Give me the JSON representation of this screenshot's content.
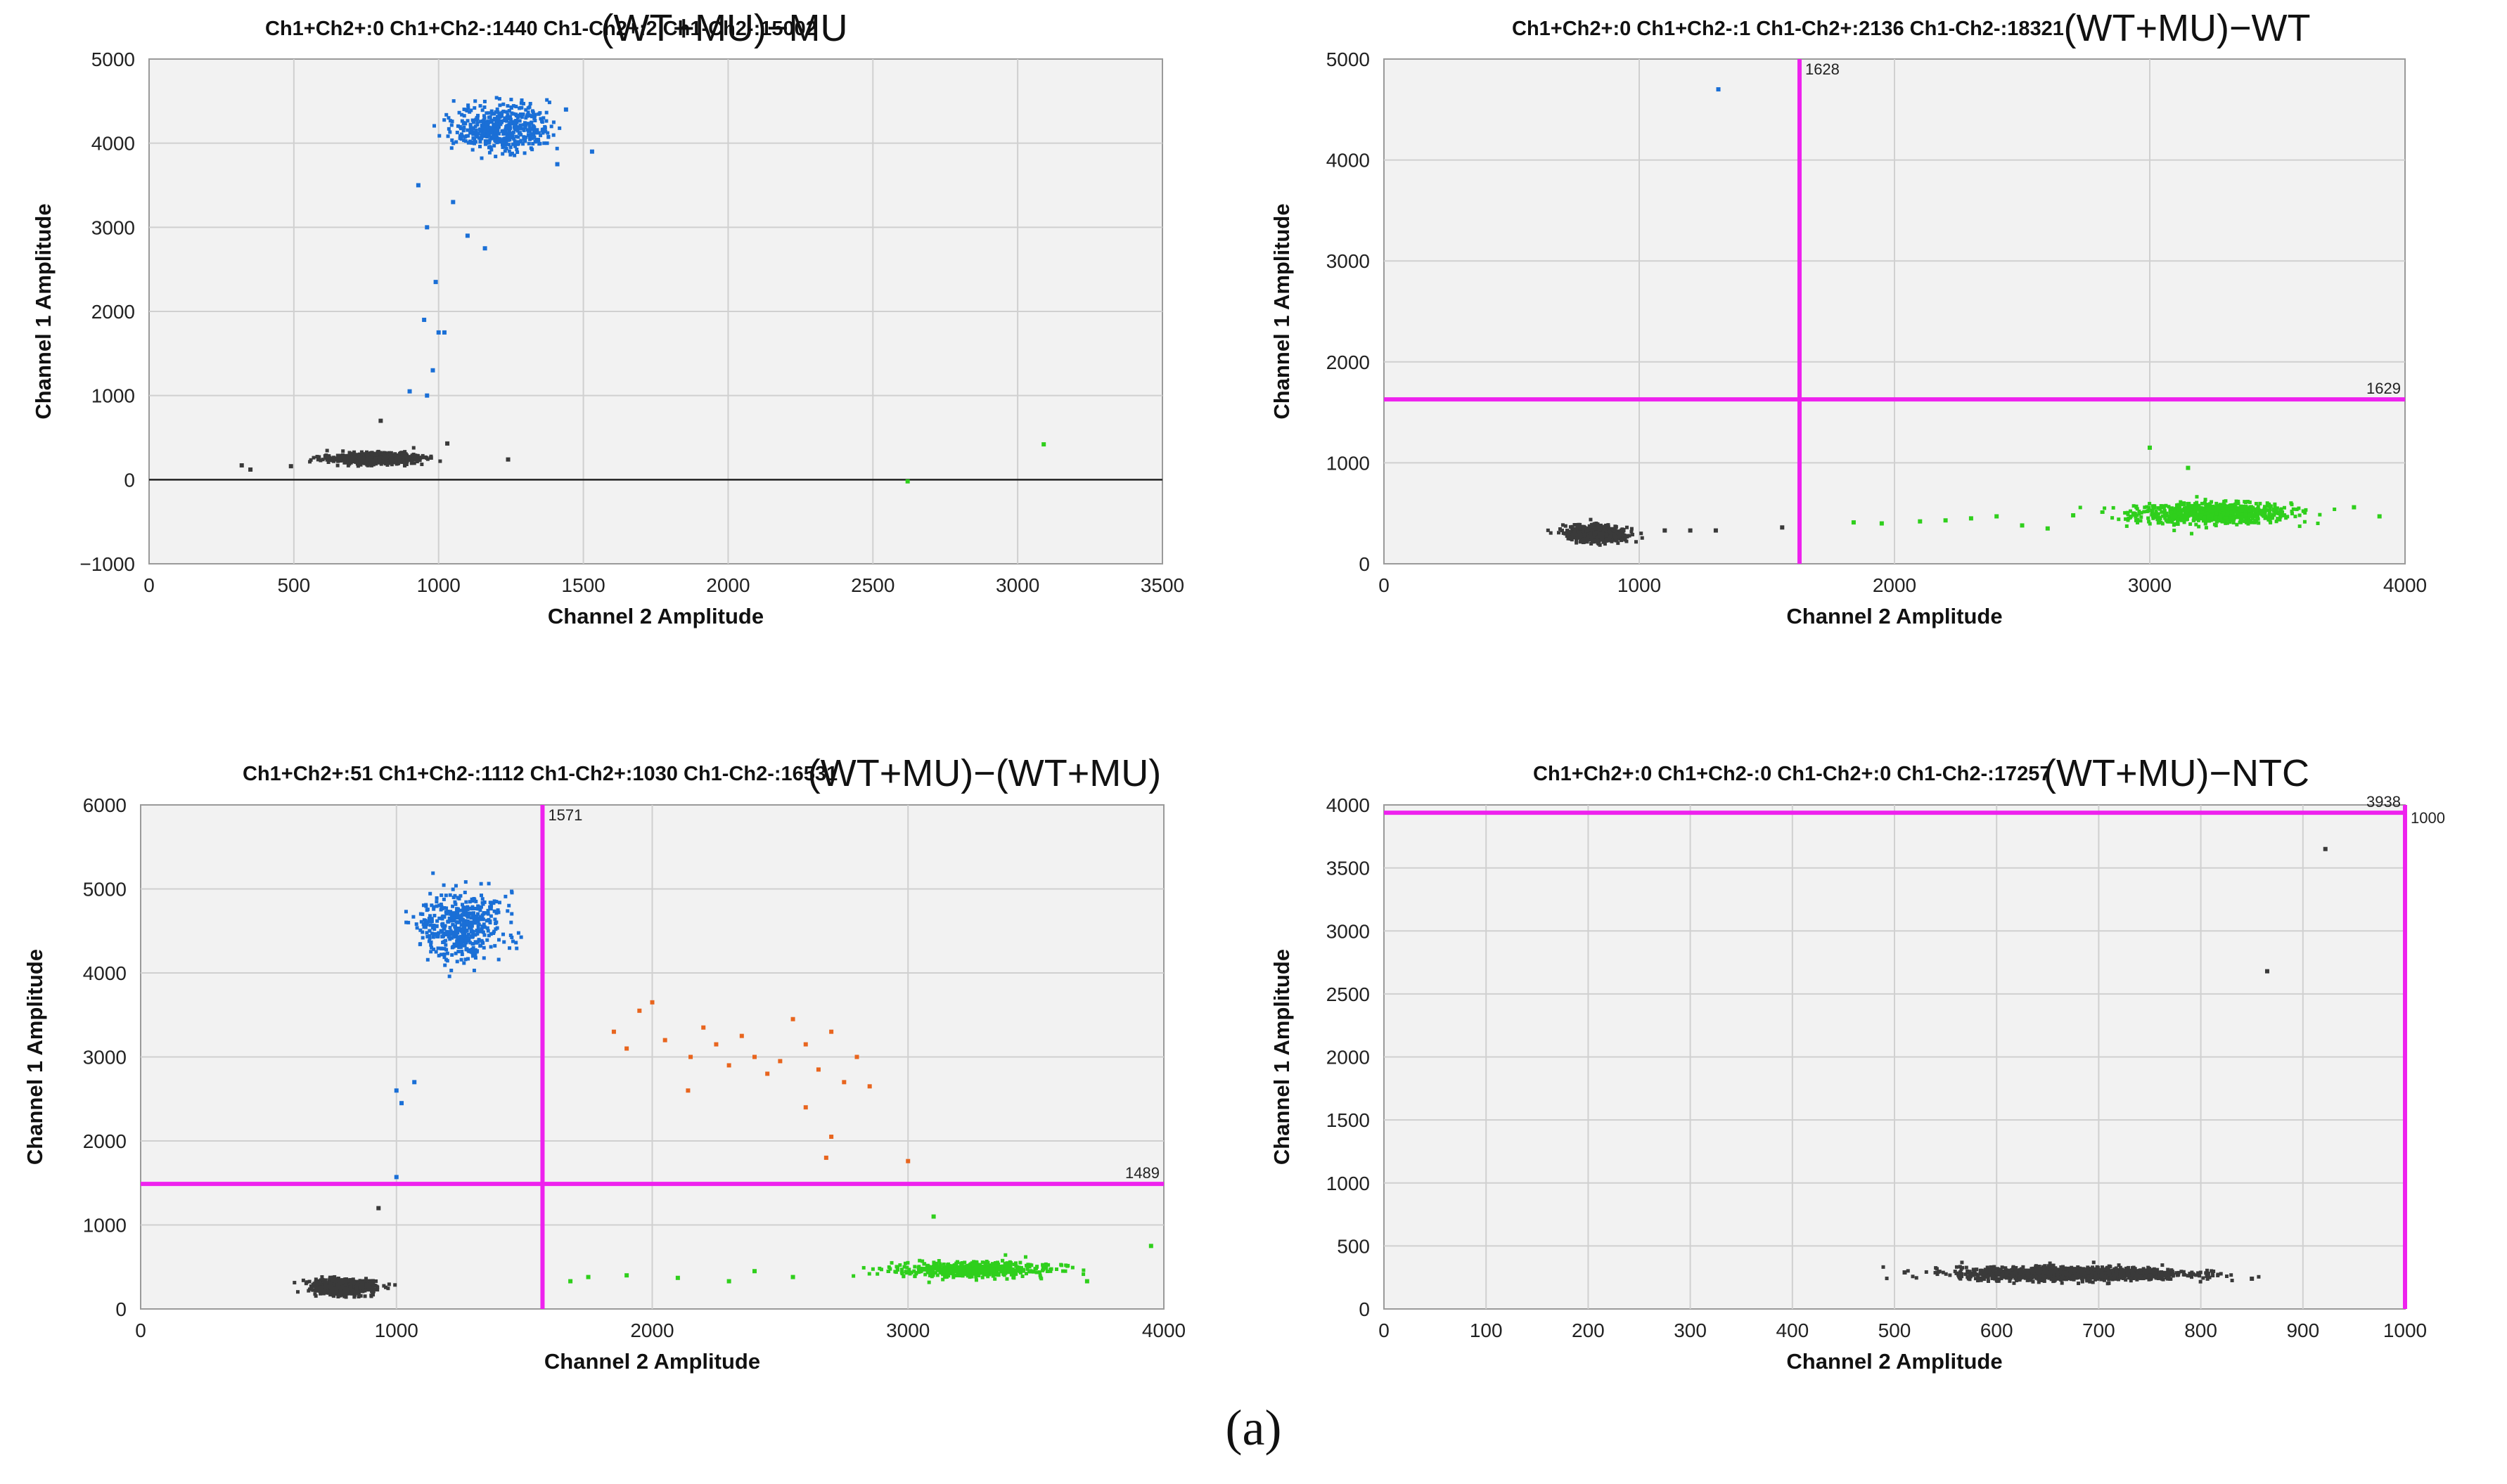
{
  "figure_caption": "(a)",
  "colors": {
    "ch1_positive": "#1a6fd6",
    "ch2_positive": "#2fcf1c",
    "double_positive": "#e8651e",
    "double_negative": "#3a3a3a",
    "threshold": "#ee22ee",
    "plot_bg": "#f2f2f2",
    "grid": "#d0d0d0"
  },
  "chart_data": [
    {
      "type": "scatter",
      "id": "p1",
      "counts_label": "Ch1+Ch2+:0  Ch1+Ch2-:1440  Ch1-Ch2+:2  Ch1-Ch2-:15002",
      "title": "(WT+MU)−MU",
      "xlabel": "Channel 2 Amplitude",
      "ylabel": "Channel 1 Amplitude",
      "xlim": [
        0,
        3500
      ],
      "ylim": [
        -1000,
        5000
      ],
      "xticks": [
        0,
        500,
        1000,
        1500,
        2000,
        2500,
        3000,
        3500
      ],
      "yticks": [
        -1000,
        0,
        1000,
        2000,
        3000,
        4000,
        5000
      ],
      "zero_line": true,
      "threshold_x": null,
      "threshold_y": null,
      "clusters": [
        {
          "name": "Ch1-Ch2-",
          "color": "double_negative",
          "n": 900,
          "cx": 780,
          "cy": 250,
          "sx": 70,
          "sy": 30
        },
        {
          "name": "Ch1+Ch2-",
          "color": "ch1_positive",
          "n": 500,
          "cx": 1220,
          "cy": 4180,
          "sx": 80,
          "sy": 140
        }
      ],
      "extra_points": [
        {
          "x": 930,
          "y": 3500,
          "c": "ch1_positive"
        },
        {
          "x": 960,
          "y": 3000,
          "c": "ch1_positive"
        },
        {
          "x": 990,
          "y": 2350,
          "c": "ch1_positive"
        },
        {
          "x": 950,
          "y": 1900,
          "c": "ch1_positive"
        },
        {
          "x": 1000,
          "y": 1750,
          "c": "ch1_positive"
        },
        {
          "x": 1020,
          "y": 1750,
          "c": "ch1_positive"
        },
        {
          "x": 980,
          "y": 1300,
          "c": "ch1_positive"
        },
        {
          "x": 900,
          "y": 1050,
          "c": "ch1_positive"
        },
        {
          "x": 960,
          "y": 1000,
          "c": "ch1_positive"
        },
        {
          "x": 1050,
          "y": 3300,
          "c": "ch1_positive"
        },
        {
          "x": 1100,
          "y": 2900,
          "c": "ch1_positive"
        },
        {
          "x": 1160,
          "y": 2750,
          "c": "ch1_positive"
        },
        {
          "x": 1530,
          "y": 3900,
          "c": "ch1_positive"
        },
        {
          "x": 1410,
          "y": 3750,
          "c": "ch1_positive"
        },
        {
          "x": 1440,
          "y": 4400,
          "c": "ch1_positive"
        },
        {
          "x": 320,
          "y": 170,
          "c": "double_negative"
        },
        {
          "x": 350,
          "y": 120,
          "c": "double_negative"
        },
        {
          "x": 490,
          "y": 160,
          "c": "double_negative"
        },
        {
          "x": 1030,
          "y": 430,
          "c": "double_negative"
        },
        {
          "x": 1240,
          "y": 240,
          "c": "double_negative"
        },
        {
          "x": 800,
          "y": 700,
          "c": "double_negative"
        },
        {
          "x": 2620,
          "y": -20,
          "c": "ch2_positive"
        },
        {
          "x": 3090,
          "y": 420,
          "c": "ch2_positive"
        }
      ]
    },
    {
      "type": "scatter",
      "id": "p2",
      "counts_label": "Ch1+Ch2+:0  Ch1+Ch2-:1  Ch1-Ch2+:2136  Ch1-Ch2-:18321",
      "title": "(WT+MU)−WT",
      "xlabel": "Channel 2 Amplitude",
      "ylabel": "Channel 1 Amplitude",
      "xlim": [
        0,
        4000
      ],
      "ylim": [
        0,
        5000
      ],
      "xticks": [
        0,
        1000,
        2000,
        3000,
        4000
      ],
      "yticks": [
        0,
        1000,
        2000,
        3000,
        4000,
        5000
      ],
      "zero_line": false,
      "threshold_x": 1628,
      "threshold_y": 1629,
      "threshold_x_label": "1628",
      "threshold_y_label": "1629",
      "clusters": [
        {
          "name": "Ch1-Ch2-",
          "color": "double_negative",
          "n": 700,
          "cx": 830,
          "cy": 300,
          "sx": 55,
          "sy": 40
        },
        {
          "name": "Ch1-Ch2+",
          "color": "ch2_positive",
          "n": 900,
          "cx": 3250,
          "cy": 500,
          "sx": 150,
          "sy": 50
        }
      ],
      "extra_points": [
        {
          "x": 1310,
          "y": 4700,
          "c": "ch1_positive"
        },
        {
          "x": 1100,
          "y": 330,
          "c": "double_negative"
        },
        {
          "x": 1200,
          "y": 330,
          "c": "double_negative"
        },
        {
          "x": 1300,
          "y": 330,
          "c": "double_negative"
        },
        {
          "x": 1560,
          "y": 360,
          "c": "double_negative"
        },
        {
          "x": 1950,
          "y": 400,
          "c": "ch2_positive"
        },
        {
          "x": 2100,
          "y": 420,
          "c": "ch2_positive"
        },
        {
          "x": 2200,
          "y": 430,
          "c": "ch2_positive"
        },
        {
          "x": 2300,
          "y": 450,
          "c": "ch2_positive"
        },
        {
          "x": 2400,
          "y": 470,
          "c": "ch2_positive"
        },
        {
          "x": 2500,
          "y": 380,
          "c": "ch2_positive"
        },
        {
          "x": 2600,
          "y": 350,
          "c": "ch2_positive"
        },
        {
          "x": 2700,
          "y": 480,
          "c": "ch2_positive"
        },
        {
          "x": 1840,
          "y": 410,
          "c": "ch2_positive"
        },
        {
          "x": 3000,
          "y": 1150,
          "c": "ch2_positive"
        },
        {
          "x": 3150,
          "y": 950,
          "c": "ch2_positive"
        },
        {
          "x": 3900,
          "y": 470,
          "c": "ch2_positive"
        },
        {
          "x": 3800,
          "y": 560,
          "c": "ch2_positive"
        }
      ]
    },
    {
      "type": "scatter",
      "id": "p3",
      "counts_label": "Ch1+Ch2+:51  Ch1+Ch2-:1112  Ch1-Ch2+:1030  Ch1-Ch2-:16531",
      "title": "(WT+MU)−(WT+MU)",
      "xlabel": "Channel 2 Amplitude",
      "ylabel": "Channel 1 Amplitude",
      "xlim": [
        0,
        4000
      ],
      "ylim": [
        0,
        6000
      ],
      "xticks": [
        0,
        1000,
        2000,
        3000,
        4000
      ],
      "yticks": [
        0,
        1000,
        2000,
        3000,
        4000,
        5000,
        6000
      ],
      "zero_line": false,
      "threshold_x": 1571,
      "threshold_y": 1489,
      "threshold_x_label": "1571",
      "threshold_y_label": "1489",
      "clusters": [
        {
          "name": "Ch1-Ch2-",
          "color": "double_negative",
          "n": 700,
          "cx": 790,
          "cy": 260,
          "sx": 60,
          "sy": 45
        },
        {
          "name": "Ch1+Ch2-",
          "color": "ch1_positive",
          "n": 500,
          "cx": 1250,
          "cy": 4560,
          "sx": 80,
          "sy": 200
        },
        {
          "name": "Ch1-Ch2+",
          "color": "ch2_positive",
          "n": 550,
          "cx": 3250,
          "cy": 470,
          "sx": 150,
          "sy": 45
        }
      ],
      "extra_points": [
        {
          "x": 1000,
          "y": 2600,
          "c": "ch1_positive"
        },
        {
          "x": 1020,
          "y": 2450,
          "c": "ch1_positive"
        },
        {
          "x": 1070,
          "y": 2700,
          "c": "ch1_positive"
        },
        {
          "x": 1000,
          "y": 1570,
          "c": "ch1_positive"
        },
        {
          "x": 930,
          "y": 1200,
          "c": "double_negative"
        },
        {
          "x": 1850,
          "y": 3300,
          "c": "double_positive"
        },
        {
          "x": 1900,
          "y": 3100,
          "c": "double_positive"
        },
        {
          "x": 1950,
          "y": 3550,
          "c": "double_positive"
        },
        {
          "x": 2000,
          "y": 3650,
          "c": "double_positive"
        },
        {
          "x": 2050,
          "y": 3200,
          "c": "double_positive"
        },
        {
          "x": 2150,
          "y": 3000,
          "c": "double_positive"
        },
        {
          "x": 2200,
          "y": 3350,
          "c": "double_positive"
        },
        {
          "x": 2250,
          "y": 3150,
          "c": "double_positive"
        },
        {
          "x": 2300,
          "y": 2900,
          "c": "double_positive"
        },
        {
          "x": 2350,
          "y": 3250,
          "c": "double_positive"
        },
        {
          "x": 2400,
          "y": 3000,
          "c": "double_positive"
        },
        {
          "x": 2450,
          "y": 2800,
          "c": "double_positive"
        },
        {
          "x": 2500,
          "y": 2950,
          "c": "double_positive"
        },
        {
          "x": 2550,
          "y": 3450,
          "c": "double_positive"
        },
        {
          "x": 2600,
          "y": 3150,
          "c": "double_positive"
        },
        {
          "x": 2650,
          "y": 2850,
          "c": "double_positive"
        },
        {
          "x": 2700,
          "y": 3300,
          "c": "double_positive"
        },
        {
          "x": 2750,
          "y": 2700,
          "c": "double_positive"
        },
        {
          "x": 2800,
          "y": 3000,
          "c": "double_positive"
        },
        {
          "x": 2850,
          "y": 2650,
          "c": "double_positive"
        },
        {
          "x": 2700,
          "y": 2050,
          "c": "double_positive"
        },
        {
          "x": 2680,
          "y": 1800,
          "c": "double_positive"
        },
        {
          "x": 2140,
          "y": 2600,
          "c": "double_positive"
        },
        {
          "x": 2600,
          "y": 2400,
          "c": "double_positive"
        },
        {
          "x": 3000,
          "y": 1760,
          "c": "double_positive"
        },
        {
          "x": 1680,
          "y": 330,
          "c": "ch2_positive"
        },
        {
          "x": 1750,
          "y": 380,
          "c": "ch2_positive"
        },
        {
          "x": 1900,
          "y": 400,
          "c": "ch2_positive"
        },
        {
          "x": 2100,
          "y": 370,
          "c": "ch2_positive"
        },
        {
          "x": 2300,
          "y": 330,
          "c": "ch2_positive"
        },
        {
          "x": 2400,
          "y": 450,
          "c": "ch2_positive"
        },
        {
          "x": 2550,
          "y": 380,
          "c": "ch2_positive"
        },
        {
          "x": 3100,
          "y": 1100,
          "c": "ch2_positive"
        },
        {
          "x": 3950,
          "y": 750,
          "c": "ch2_positive"
        },
        {
          "x": 3700,
          "y": 330,
          "c": "ch2_positive"
        }
      ]
    },
    {
      "type": "scatter",
      "id": "p4",
      "counts_label": "Ch1+Ch2+:0  Ch1+Ch2-:0  Ch1-Ch2+:0  Ch1-Ch2-:17257",
      "title": "(WT+MU)−NTC",
      "xlabel": "Channel 2 Amplitude",
      "ylabel": "Channel 1 Amplitude",
      "xlim": [
        0,
        1000
      ],
      "ylim": [
        0,
        4000
      ],
      "xticks": [
        0,
        100,
        200,
        300,
        400,
        500,
        600,
        700,
        800,
        900,
        1000
      ],
      "yticks": [
        0,
        500,
        1000,
        1500,
        2000,
        2500,
        3000,
        3500,
        4000
      ],
      "zero_line": false,
      "threshold_x": 1000,
      "threshold_y": 3938,
      "threshold_x_label": "1000",
      "threshold_y_label": "3938",
      "clusters": [
        {
          "name": "Ch1-Ch2-",
          "color": "double_negative",
          "n": 1400,
          "cx": 675,
          "cy": 280,
          "sx": 55,
          "sy": 25
        }
      ],
      "extra_points": [
        {
          "x": 922,
          "y": 3650,
          "c": "double_negative"
        },
        {
          "x": 865,
          "y": 2680,
          "c": "double_negative"
        },
        {
          "x": 510,
          "y": 290,
          "c": "double_negative"
        },
        {
          "x": 850,
          "y": 240,
          "c": "double_negative"
        }
      ]
    }
  ]
}
